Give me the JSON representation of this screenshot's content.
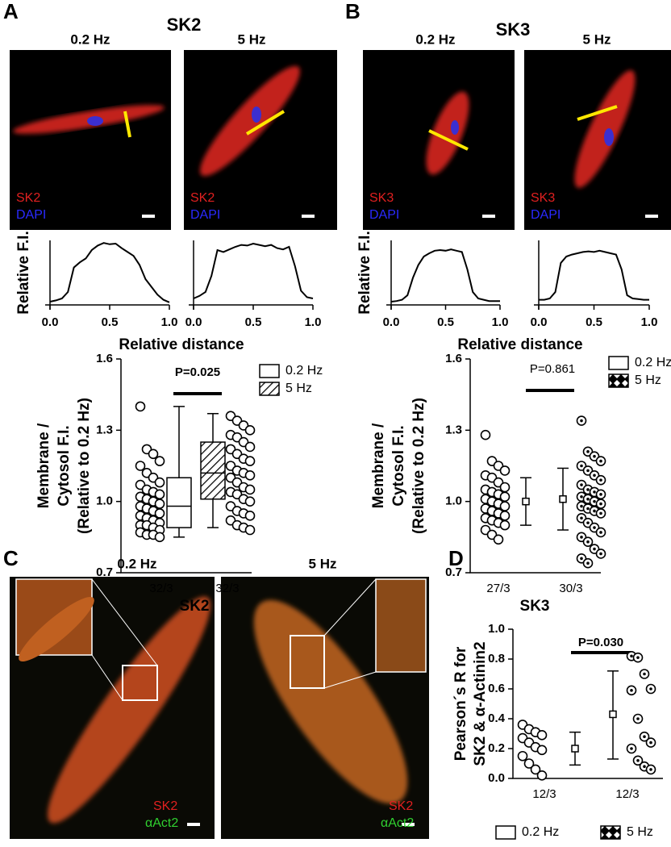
{
  "figure": {
    "panel_a": {
      "letter": "A",
      "title": "SK2",
      "columns": [
        "0.2 Hz",
        "5 Hz"
      ],
      "image_labels": [
        "SK2",
        "DAPI"
      ]
    },
    "panel_b": {
      "letter": "B",
      "title": "SK3",
      "columns": [
        "0.2 Hz",
        "5 Hz"
      ],
      "image_labels": [
        "SK3",
        "DAPI"
      ]
    },
    "panel_c": {
      "letter": "C",
      "columns": [
        "0.2 Hz",
        "5 Hz"
      ],
      "image_labels": [
        "SK2",
        "αAct2"
      ]
    },
    "panel_d": {
      "letter": "D"
    }
  },
  "chart_data": [
    {
      "type": "line",
      "y_label": "Relative F.I.",
      "x_label": "Relative distance",
      "color": "#000000",
      "x": [
        0,
        0.05,
        0.1,
        0.15,
        0.2,
        0.25,
        0.3,
        0.35,
        0.4,
        0.45,
        0.5,
        0.55,
        0.6,
        0.65,
        0.7,
        0.75,
        0.8,
        0.85,
        0.9,
        0.95,
        1
      ],
      "values": [
        0.05,
        0.07,
        0.1,
        0.2,
        0.58,
        0.66,
        0.72,
        0.85,
        0.92,
        0.96,
        0.94,
        0.95,
        0.88,
        0.82,
        0.76,
        0.62,
        0.4,
        0.28,
        0.16,
        0.08,
        0.04
      ],
      "xlim": [
        0,
        1
      ],
      "xticks": [
        {
          "value": 0,
          "label": "0.0"
        },
        0.5,
        {
          "value": 1,
          "label": "1.0"
        }
      ],
      "ylim": [
        0,
        1
      ]
    },
    {
      "type": "line",
      "color": "#000000",
      "x": [
        0,
        0.05,
        0.1,
        0.15,
        0.2,
        0.25,
        0.3,
        0.35,
        0.4,
        0.45,
        0.5,
        0.55,
        0.6,
        0.65,
        0.7,
        0.75,
        0.8,
        0.85,
        0.9,
        0.95,
        1
      ],
      "values": [
        0.1,
        0.14,
        0.2,
        0.45,
        0.85,
        0.82,
        0.86,
        0.9,
        0.93,
        0.92,
        0.95,
        0.93,
        0.91,
        0.93,
        0.88,
        0.86,
        0.9,
        0.6,
        0.22,
        0.12,
        0.1
      ],
      "xlim": [
        0,
        1
      ],
      "xticks": [
        {
          "value": 0,
          "label": "0.0"
        },
        0.5,
        {
          "value": 1,
          "label": "1.0"
        }
      ],
      "ylim": [
        0,
        1
      ]
    },
    {
      "type": "line",
      "y_label": "Relative F.I.",
      "x_label": "Relative distance",
      "color": "#000000",
      "x": [
        0,
        0.05,
        0.1,
        0.15,
        0.2,
        0.25,
        0.3,
        0.35,
        0.4,
        0.45,
        0.5,
        0.55,
        0.6,
        0.65,
        0.7,
        0.75,
        0.8,
        0.85,
        0.9,
        0.95,
        1
      ],
      "values": [
        0.05,
        0.06,
        0.08,
        0.15,
        0.42,
        0.62,
        0.75,
        0.8,
        0.84,
        0.85,
        0.84,
        0.86,
        0.84,
        0.82,
        0.55,
        0.2,
        0.1,
        0.08,
        0.06,
        0.06,
        0.06
      ],
      "xlim": [
        0,
        1
      ],
      "xticks": [
        {
          "value": 0,
          "label": "0.0"
        },
        0.5,
        {
          "value": 1,
          "label": "1.0"
        }
      ],
      "ylim": [
        0,
        1
      ]
    },
    {
      "type": "line",
      "color": "#000000",
      "x": [
        0,
        0.05,
        0.1,
        0.15,
        0.2,
        0.25,
        0.3,
        0.35,
        0.4,
        0.45,
        0.5,
        0.55,
        0.6,
        0.65,
        0.7,
        0.75,
        0.8,
        0.85,
        0.9,
        0.95,
        1
      ],
      "values": [
        0.08,
        0.08,
        0.1,
        0.2,
        0.65,
        0.75,
        0.78,
        0.8,
        0.82,
        0.83,
        0.82,
        0.84,
        0.82,
        0.8,
        0.78,
        0.55,
        0.15,
        0.1,
        0.09,
        0.08,
        0.08
      ],
      "xlim": [
        0,
        1
      ],
      "xticks": [
        {
          "value": 0,
          "label": "0.0"
        },
        0.5,
        {
          "value": 1,
          "label": "1.0"
        }
      ],
      "ylim": [
        0,
        1
      ]
    },
    {
      "type": "box",
      "y_label": [
        "Membrane /",
        "Cytosol F.I.",
        "(Relative to 0.2 Hz)"
      ],
      "x_label": "SK2",
      "categories": [
        "32/3",
        "32/3"
      ],
      "annotation": "P=0.025",
      "ylim": [
        0.7,
        1.6
      ],
      "yticks": [
        0.7,
        {
          "value": 1,
          "label": "1.0"
        },
        1.3,
        1.6
      ],
      "legend": "upper right",
      "series": [
        {
          "name": "0.2 Hz",
          "color": "#000000",
          "fill": "none",
          "marker": "circle",
          "points": [
            1.4,
            1.22,
            1.2,
            1.17,
            1.15,
            1.12,
            1.1,
            1.08,
            1.07,
            1.05,
            1.04,
            1.03,
            1.02,
            1.01,
            1.0,
            0.99,
            0.98,
            0.97,
            0.96,
            0.95,
            0.94,
            0.93,
            0.92,
            0.91,
            0.9,
            0.9,
            0.89,
            0.88,
            0.87,
            0.86,
            0.86,
            0.85
          ],
          "box": {
            "whisker_low": 0.85,
            "q1": 0.89,
            "median": 0.98,
            "q3": 1.1,
            "whisker_high": 1.4
          }
        },
        {
          "name": "5 Hz",
          "color": "#000000",
          "fill": "hatch",
          "marker": "circle",
          "points": [
            1.36,
            1.34,
            1.32,
            1.3,
            1.28,
            1.27,
            1.25,
            1.23,
            1.22,
            1.2,
            1.18,
            1.17,
            1.15,
            1.13,
            1.12,
            1.11,
            1.1,
            1.08,
            1.06,
            1.05,
            1.04,
            1.03,
            1.01,
            1.0,
            0.98,
            0.96,
            0.95,
            0.94,
            0.92,
            0.9,
            0.89,
            0.88
          ],
          "box": {
            "whisker_low": 0.89,
            "q1": 1.01,
            "median": 1.12,
            "q3": 1.25,
            "whisker_high": 1.37
          }
        }
      ]
    },
    {
      "type": "mean_sd",
      "y_label": [
        "Membrane /",
        "Cytosol F.I.",
        "(Relative to 0.2 Hz)"
      ],
      "x_label": "SK3",
      "categories": [
        "27/3",
        "30/3"
      ],
      "annotation": "P=0.861",
      "ylim": [
        0.7,
        1.6
      ],
      "yticks": [
        0.7,
        {
          "value": 1,
          "label": "1.0"
        },
        1.3,
        1.6
      ],
      "legend": "upper right",
      "series": [
        {
          "name": "0.2 Hz",
          "color": "#000000",
          "fill": "none",
          "marker": "circle",
          "points": [
            1.28,
            1.17,
            1.15,
            1.13,
            1.11,
            1.1,
            1.08,
            1.06,
            1.05,
            1.04,
            1.03,
            1.02,
            1.01,
            1.0,
            0.99,
            0.98,
            0.97,
            0.96,
            0.95,
            0.94,
            0.93,
            0.92,
            0.91,
            0.9,
            0.88,
            0.86,
            0.84
          ],
          "mean": 1.0,
          "low": 0.9,
          "high": 1.1
        },
        {
          "name": "5 Hz",
          "color": "#000000",
          "fill": "diamond",
          "marker": "dotted-circle",
          "points": [
            1.34,
            1.21,
            1.19,
            1.17,
            1.15,
            1.13,
            1.11,
            1.09,
            1.07,
            1.05,
            1.04,
            1.03,
            1.02,
            1.01,
            1.0,
            0.99,
            0.98,
            0.97,
            0.96,
            0.95,
            0.93,
            0.91,
            0.89,
            0.87,
            0.85,
            0.83,
            0.8,
            0.78,
            0.76,
            0.74
          ],
          "mean": 1.01,
          "low": 0.88,
          "high": 1.14
        }
      ]
    },
    {
      "type": "mean_sd",
      "y_label": [
        "Pearson´s R for",
        "SK2 & α-Actinin2"
      ],
      "categories": [
        "12/3",
        "12/3"
      ],
      "annotation": "P=0.030",
      "ylim": [
        0,
        1
      ],
      "yticks": [
        {
          "value": 0,
          "label": "0.0"
        },
        0.2,
        0.4,
        0.6,
        0.8,
        {
          "value": 1,
          "label": "1.0"
        }
      ],
      "legend": "bottom",
      "series": [
        {
          "name": "0.2 Hz",
          "color": "#000000",
          "fill": "none",
          "marker": "circle",
          "points": [
            0.36,
            0.33,
            0.31,
            0.29,
            0.27,
            0.24,
            0.21,
            0.19,
            0.15,
            0.1,
            0.06,
            0.02
          ],
          "mean": 0.2,
          "low": 0.09,
          "high": 0.31
        },
        {
          "name": "5 Hz",
          "color": "#000000",
          "fill": "diamond",
          "marker": "dotted-circle",
          "points": [
            0.82,
            0.81,
            0.7,
            0.6,
            0.59,
            0.4,
            0.28,
            0.24,
            0.2,
            0.12,
            0.08,
            0.06
          ],
          "mean": 0.43,
          "low": 0.13,
          "high": 0.72
        }
      ]
    }
  ]
}
